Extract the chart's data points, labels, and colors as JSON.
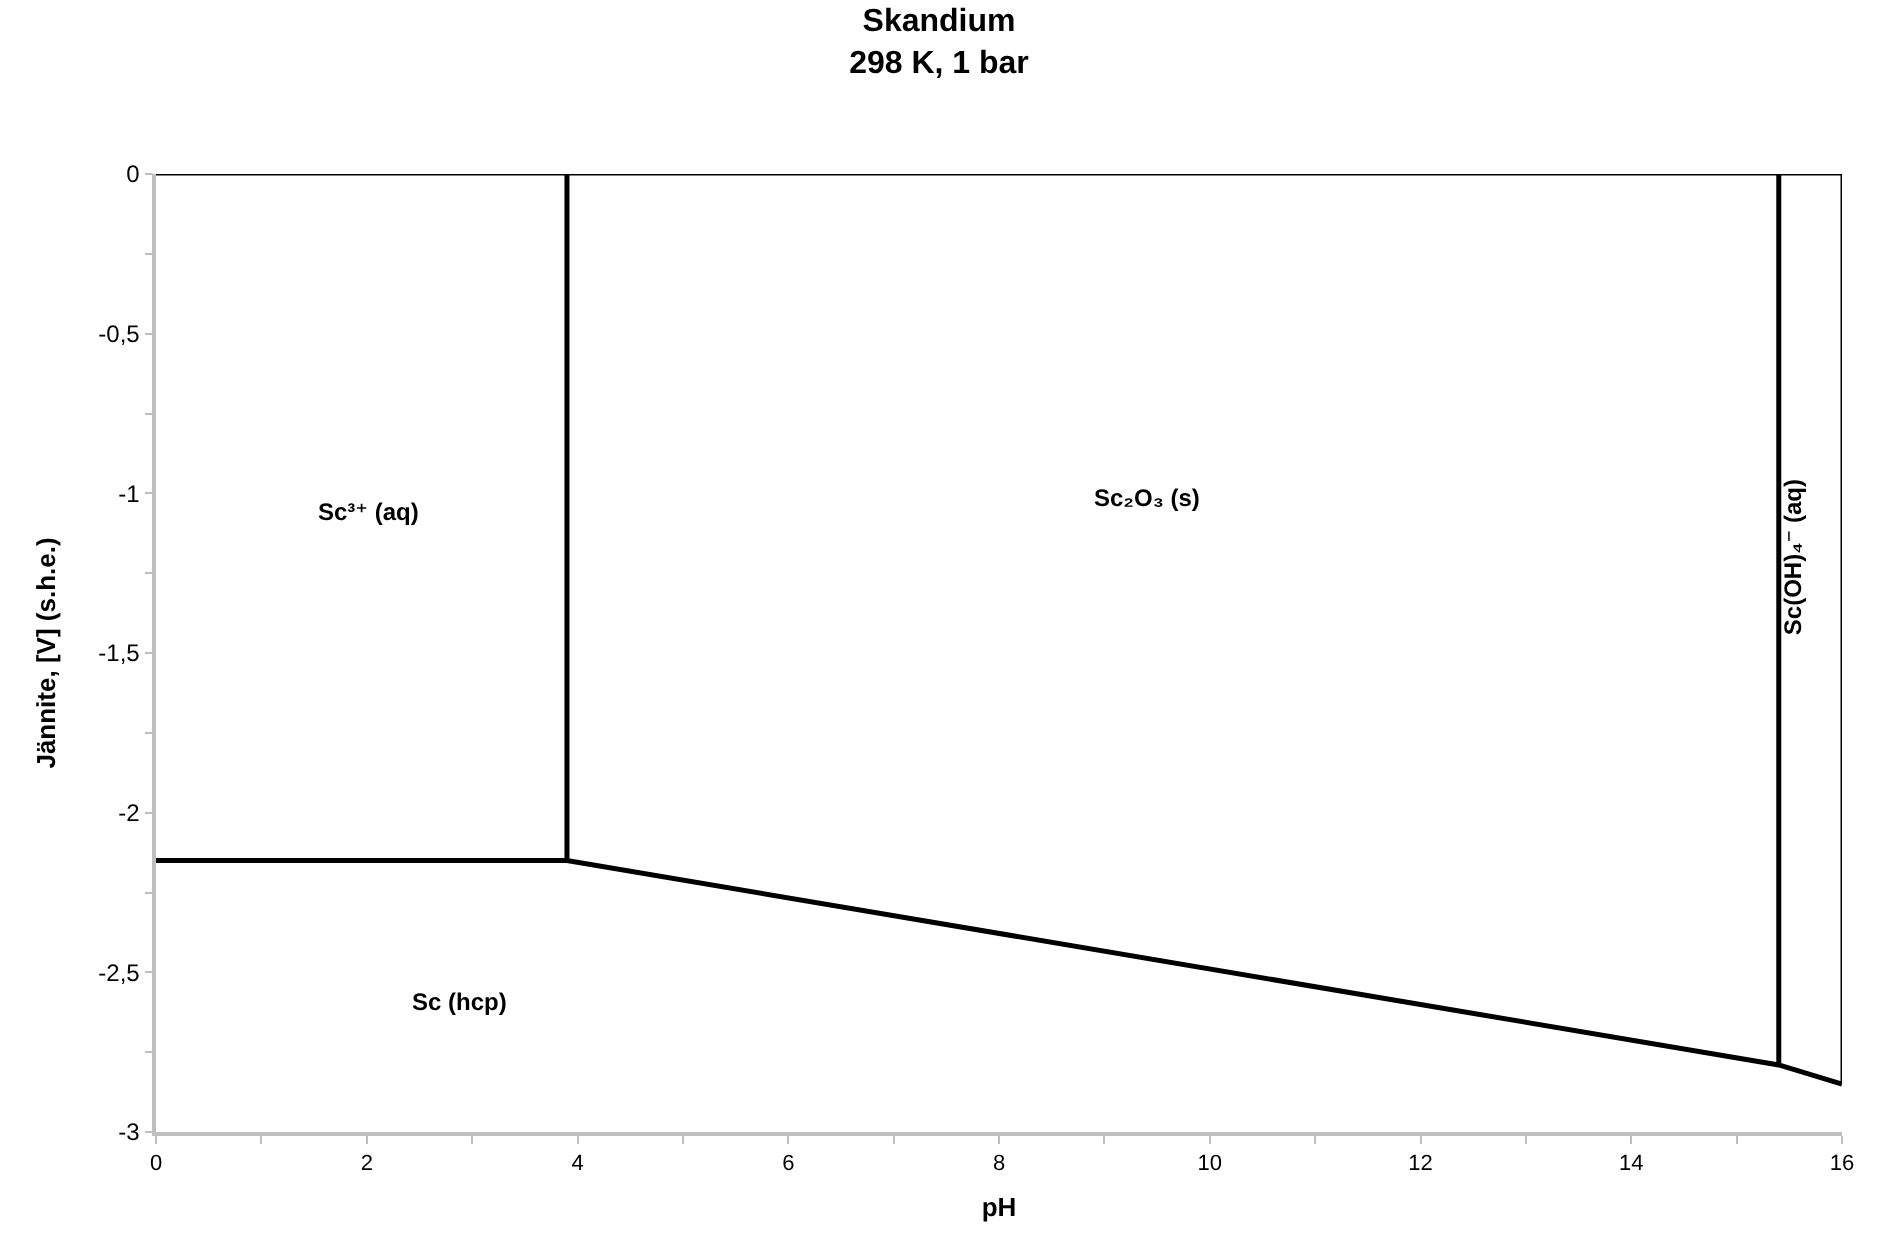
{
  "chart_data": {
    "type": "line",
    "title": "Skandium",
    "subtitle": "298 K, 1 bar",
    "xlabel": "pH",
    "ylabel": "Jännite, [V] (s.h.e.)",
    "xlim": [
      0,
      16
    ],
    "xticks": [
      0,
      2,
      4,
      6,
      8,
      10,
      12,
      14,
      16
    ],
    "ylim": [
      -3,
      0
    ],
    "yticks": [
      -3,
      {
        "value": -2.5,
        "label": "-2,5"
      },
      -2,
      {
        "value": -1.5,
        "label": "-1,5"
      },
      -1,
      {
        "value": -0.5,
        "label": "-0,5"
      },
      0
    ],
    "grid": false,
    "marker": "none",
    "line_style": "solid",
    "series": [
      {
        "color": "#000000",
        "x": [
          0,
          3.9,
          15.4,
          16
        ],
        "values": [
          -2.15,
          -2.15,
          -2.79,
          -2.85
        ]
      },
      {
        "color": "#000000",
        "x": [
          3.9,
          3.9
        ],
        "values": [
          -2.15,
          0
        ]
      },
      {
        "color": "#000000",
        "x": [
          15.4,
          15.4
        ],
        "values": [
          -2.79,
          0
        ]
      },
      {
        "color": "#000000",
        "x": [
          0,
          16
        ],
        "values": [
          0,
          0
        ]
      },
      {
        "color": "#000000",
        "x": [
          16,
          16
        ],
        "values": [
          0,
          -2.85
        ]
      }
    ],
    "annotations": [
      "Sc³⁺ (aq)",
      "Sc₂O₃ (s)",
      "Sc(OH)₄⁻ (aq)",
      "Sc (hcp)"
    ]
  }
}
